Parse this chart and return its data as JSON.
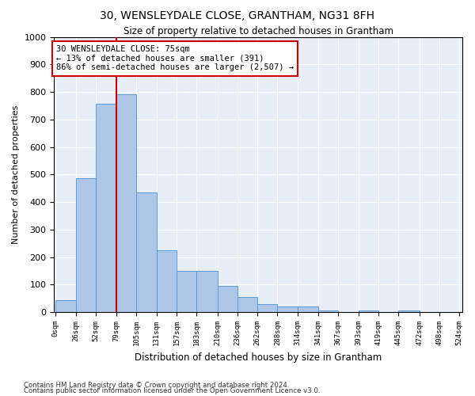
{
  "title": "30, WENSLEYDALE CLOSE, GRANTHAM, NG31 8FH",
  "subtitle": "Size of property relative to detached houses in Grantham",
  "xlabel": "Distribution of detached houses by size in Grantham",
  "ylabel": "Number of detached properties",
  "footnote1": "Contains HM Land Registry data © Crown copyright and database right 2024.",
  "footnote2": "Contains public sector information licensed under the Open Government Licence v3.0.",
  "annotation_text": "30 WENSLEYDALE CLOSE: 75sqm\n← 13% of detached houses are smaller (391)\n86% of semi-detached houses are larger (2,507) →",
  "bins_left": [
    0,
    26,
    52,
    79,
    105,
    131,
    157,
    183,
    210,
    236,
    262,
    288,
    314,
    341,
    367,
    393,
    419,
    445,
    472,
    498,
    524
  ],
  "bar_heights": [
    45,
    488,
    757,
    793,
    436,
    225,
    150,
    150,
    95,
    55,
    30,
    20,
    20,
    5,
    0,
    5,
    0,
    5,
    0,
    0
  ],
  "bar_color": "#aec6e8",
  "bar_edge_color": "#5b9bd5",
  "vline_color": "#cc0000",
  "vline_x": 79,
  "ylim": [
    0,
    1000
  ],
  "yticks": [
    0,
    100,
    200,
    300,
    400,
    500,
    600,
    700,
    800,
    900,
    1000
  ],
  "annotation_box_color": "#cc0000",
  "background_color": "#e8eef8"
}
